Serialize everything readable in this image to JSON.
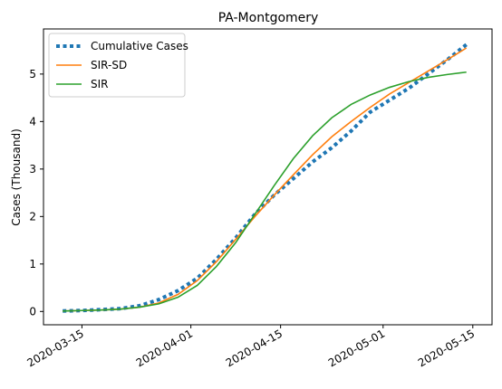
{
  "chart_data": {
    "type": "line",
    "title": "PA-Montgomery",
    "xlabel": "",
    "ylabel": "Cases (Thousand)",
    "x_type": "date",
    "xlim": [
      "2020-03-09",
      "2020-05-18"
    ],
    "ylim": [
      -0.28,
      5.95
    ],
    "x_ticks": [
      "2020-03-15",
      "2020-04-01",
      "2020-04-15",
      "2020-05-01",
      "2020-05-15"
    ],
    "y_ticks": [
      0,
      1,
      2,
      3,
      4,
      5
    ],
    "grid": false,
    "legend_position": "top-left",
    "series": [
      {
        "name": "Cumulative Cases",
        "color": "#1f77b4",
        "style": "dotted",
        "points": [
          [
            "2020-03-12",
            0.01
          ],
          [
            "2020-03-15",
            0.02
          ],
          [
            "2020-03-18",
            0.04
          ],
          [
            "2020-03-21",
            0.06
          ],
          [
            "2020-03-24",
            0.12
          ],
          [
            "2020-03-27",
            0.25
          ],
          [
            "2020-03-30",
            0.44
          ],
          [
            "2020-04-02",
            0.7
          ],
          [
            "2020-04-05",
            1.1
          ],
          [
            "2020-04-08",
            1.55
          ],
          [
            "2020-04-11",
            2.05
          ],
          [
            "2020-04-14",
            2.45
          ],
          [
            "2020-04-17",
            2.8
          ],
          [
            "2020-04-20",
            3.15
          ],
          [
            "2020-04-23",
            3.45
          ],
          [
            "2020-04-26",
            3.8
          ],
          [
            "2020-04-29",
            4.2
          ],
          [
            "2020-05-02",
            4.45
          ],
          [
            "2020-05-05",
            4.7
          ],
          [
            "2020-05-08",
            5.0
          ],
          [
            "2020-05-11",
            5.3
          ],
          [
            "2020-05-14",
            5.62
          ]
        ]
      },
      {
        "name": "SIR-SD",
        "color": "#ff7f0e",
        "style": "solid",
        "points": [
          [
            "2020-03-12",
            0.01
          ],
          [
            "2020-03-15",
            0.02
          ],
          [
            "2020-03-18",
            0.03
          ],
          [
            "2020-03-21",
            0.05
          ],
          [
            "2020-03-24",
            0.09
          ],
          [
            "2020-03-27",
            0.18
          ],
          [
            "2020-03-30",
            0.36
          ],
          [
            "2020-04-02",
            0.65
          ],
          [
            "2020-04-05",
            1.05
          ],
          [
            "2020-04-08",
            1.52
          ],
          [
            "2020-04-11",
            2.0
          ],
          [
            "2020-04-14",
            2.45
          ],
          [
            "2020-04-17",
            2.88
          ],
          [
            "2020-04-20",
            3.3
          ],
          [
            "2020-04-23",
            3.68
          ],
          [
            "2020-04-26",
            4.0
          ],
          [
            "2020-04-29",
            4.3
          ],
          [
            "2020-05-02",
            4.58
          ],
          [
            "2020-05-05",
            4.82
          ],
          [
            "2020-05-08",
            5.06
          ],
          [
            "2020-05-11",
            5.3
          ],
          [
            "2020-05-14",
            5.55
          ]
        ]
      },
      {
        "name": "SIR",
        "color": "#2ca02c",
        "style": "solid",
        "points": [
          [
            "2020-03-12",
            0.01
          ],
          [
            "2020-03-15",
            0.02
          ],
          [
            "2020-03-18",
            0.03
          ],
          [
            "2020-03-21",
            0.05
          ],
          [
            "2020-03-24",
            0.09
          ],
          [
            "2020-03-27",
            0.16
          ],
          [
            "2020-03-30",
            0.3
          ],
          [
            "2020-04-02",
            0.55
          ],
          [
            "2020-04-05",
            0.95
          ],
          [
            "2020-04-08",
            1.45
          ],
          [
            "2020-04-11",
            2.05
          ],
          [
            "2020-04-14",
            2.65
          ],
          [
            "2020-04-17",
            3.22
          ],
          [
            "2020-04-20",
            3.7
          ],
          [
            "2020-04-23",
            4.08
          ],
          [
            "2020-04-26",
            4.36
          ],
          [
            "2020-04-29",
            4.56
          ],
          [
            "2020-05-02",
            4.72
          ],
          [
            "2020-05-05",
            4.84
          ],
          [
            "2020-05-08",
            4.93
          ],
          [
            "2020-05-11",
            4.99
          ],
          [
            "2020-05-14",
            5.04
          ]
        ]
      }
    ]
  }
}
